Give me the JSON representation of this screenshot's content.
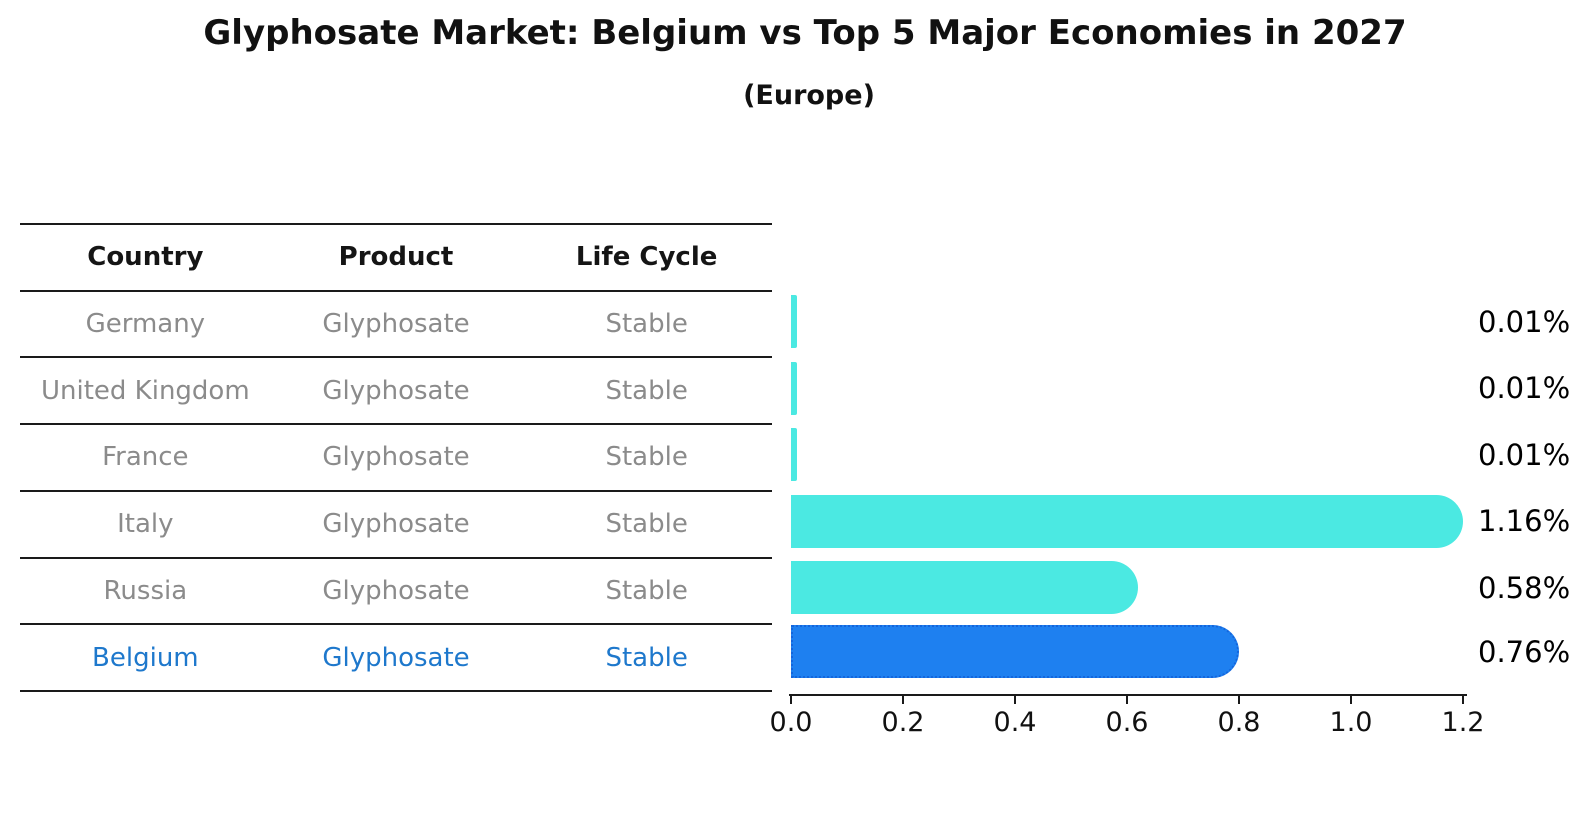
{
  "header": {
    "title": "Glyphosate Market: Belgium vs Top 5 Major Economies in 2027",
    "subtitle": "(Europe)"
  },
  "table": {
    "columns": [
      "Country",
      "Product",
      "Life Cycle"
    ],
    "rows": [
      {
        "country": "Germany",
        "product": "Glyphosate",
        "life_cycle": "Stable"
      },
      {
        "country": "United Kingdom",
        "product": "Glyphosate",
        "life_cycle": "Stable"
      },
      {
        "country": "France",
        "product": "Glyphosate",
        "life_cycle": "Stable"
      },
      {
        "country": "Italy",
        "product": "Glyphosate",
        "life_cycle": "Stable"
      },
      {
        "country": "Russia",
        "product": "Glyphosate",
        "life_cycle": "Stable"
      },
      {
        "country": "Belgium",
        "product": "Glyphosate",
        "life_cycle": "Stable"
      }
    ]
  },
  "chart_data": {
    "type": "bar",
    "orientation": "horizontal",
    "title": "Glyphosate Market: Belgium vs Top 5 Major Economies in 2027",
    "subtitle": "(Europe)",
    "categories": [
      "Germany",
      "United Kingdom",
      "France",
      "Italy",
      "Russia",
      "Belgium"
    ],
    "values": [
      0.01,
      0.01,
      0.01,
      1.16,
      0.58,
      0.76
    ],
    "value_labels": [
      "0.01%",
      "0.01%",
      "0.01%",
      "1.16%",
      "0.58%",
      "0.76%"
    ],
    "x_ticks": [
      "0.0",
      "0.2",
      "0.4",
      "0.6",
      "0.8",
      "1.0",
      "1.2"
    ],
    "xlim": [
      0.0,
      1.2
    ],
    "grid": false,
    "legend": false,
    "highlight_index": 5,
    "colors": {
      "bar_default": "#4be9e2",
      "bar_highlight": "#1e80f0",
      "bar_highlight_border": "#1465dc",
      "highlight_text": "#1e78cc",
      "table_text": "#8b8b8b",
      "header_text": "#151515",
      "axis_text": "#111111"
    }
  }
}
